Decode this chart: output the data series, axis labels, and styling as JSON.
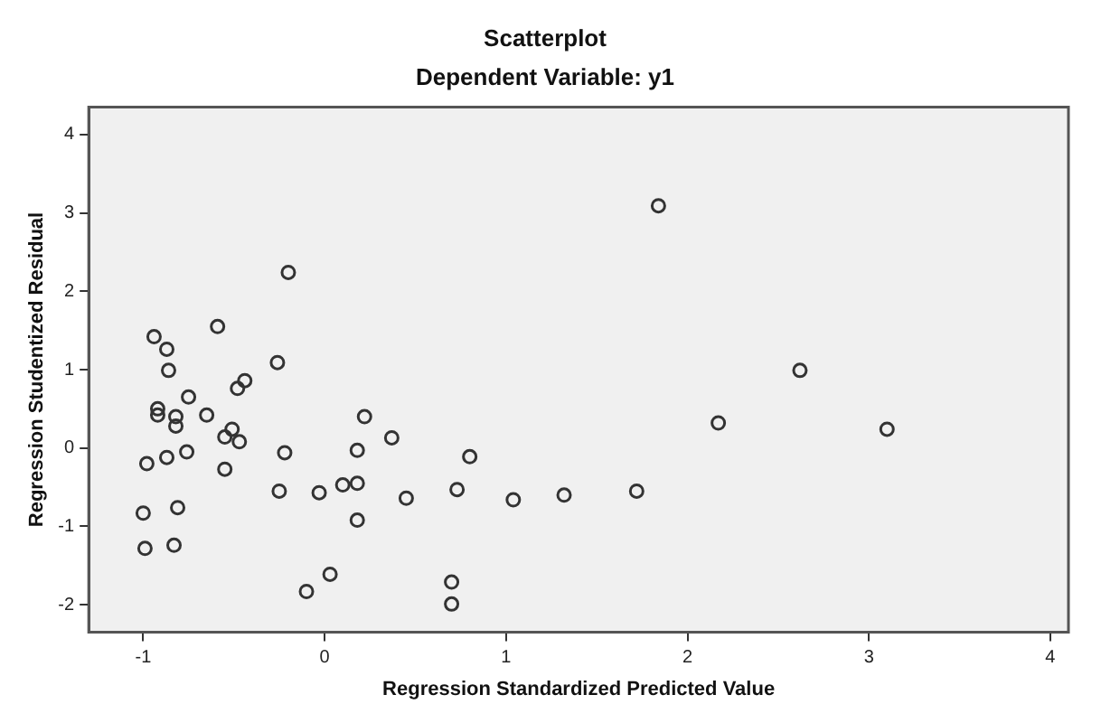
{
  "chart_data": {
    "type": "scatter",
    "title": "Scatterplot",
    "subtitle": "Dependent Variable: y1",
    "xlabel": "Regression Standardized Predicted Value",
    "ylabel": "Regression Studentized Residual",
    "x": [
      -0.2,
      -0.94,
      -0.87,
      -0.59,
      -0.86,
      -0.26,
      -0.44,
      -0.48,
      -0.75,
      -0.92,
      -0.92,
      -0.82,
      -0.82,
      -0.65,
      -0.51,
      -0.55,
      -0.47,
      0.22,
      0.37,
      -0.98,
      -0.87,
      -0.76,
      -0.55,
      -0.22,
      0.18,
      0.8,
      -0.25,
      -0.03,
      0.1,
      0.18,
      0.45,
      0.73,
      1.04,
      -1.0,
      -0.81,
      0.18,
      -0.99,
      -0.83,
      0.03,
      -0.1,
      0.7,
      0.7,
      1.32,
      1.72,
      1.84,
      2.17,
      2.62,
      3.1
    ],
    "series": [
      {
        "color": "#333333",
        "values": [
          2.24,
          1.42,
          1.26,
          1.55,
          0.99,
          1.09,
          0.86,
          0.76,
          0.65,
          0.5,
          0.42,
          0.4,
          0.28,
          0.42,
          0.24,
          0.14,
          0.08,
          0.4,
          0.13,
          -0.2,
          -0.12,
          -0.05,
          -0.27,
          -0.06,
          -0.03,
          -0.11,
          -0.55,
          -0.57,
          -0.47,
          -0.45,
          -0.64,
          -0.53,
          -0.66,
          -0.83,
          -0.76,
          -0.92,
          -1.28,
          -1.24,
          -1.61,
          -1.83,
          -1.71,
          -1.99,
          -0.6,
          -0.55,
          3.09,
          0.32,
          0.99,
          0.24
        ]
      }
    ],
    "xlim": [
      -1.3,
      4.1
    ],
    "ylim": [
      -2.35,
      4.35
    ],
    "xticks": [
      -1,
      0,
      1,
      2,
      3,
      4
    ],
    "yticks": [
      -2,
      -1,
      0,
      1,
      2,
      3,
      4
    ],
    "marker": "circle",
    "grid": false,
    "legend": false
  }
}
